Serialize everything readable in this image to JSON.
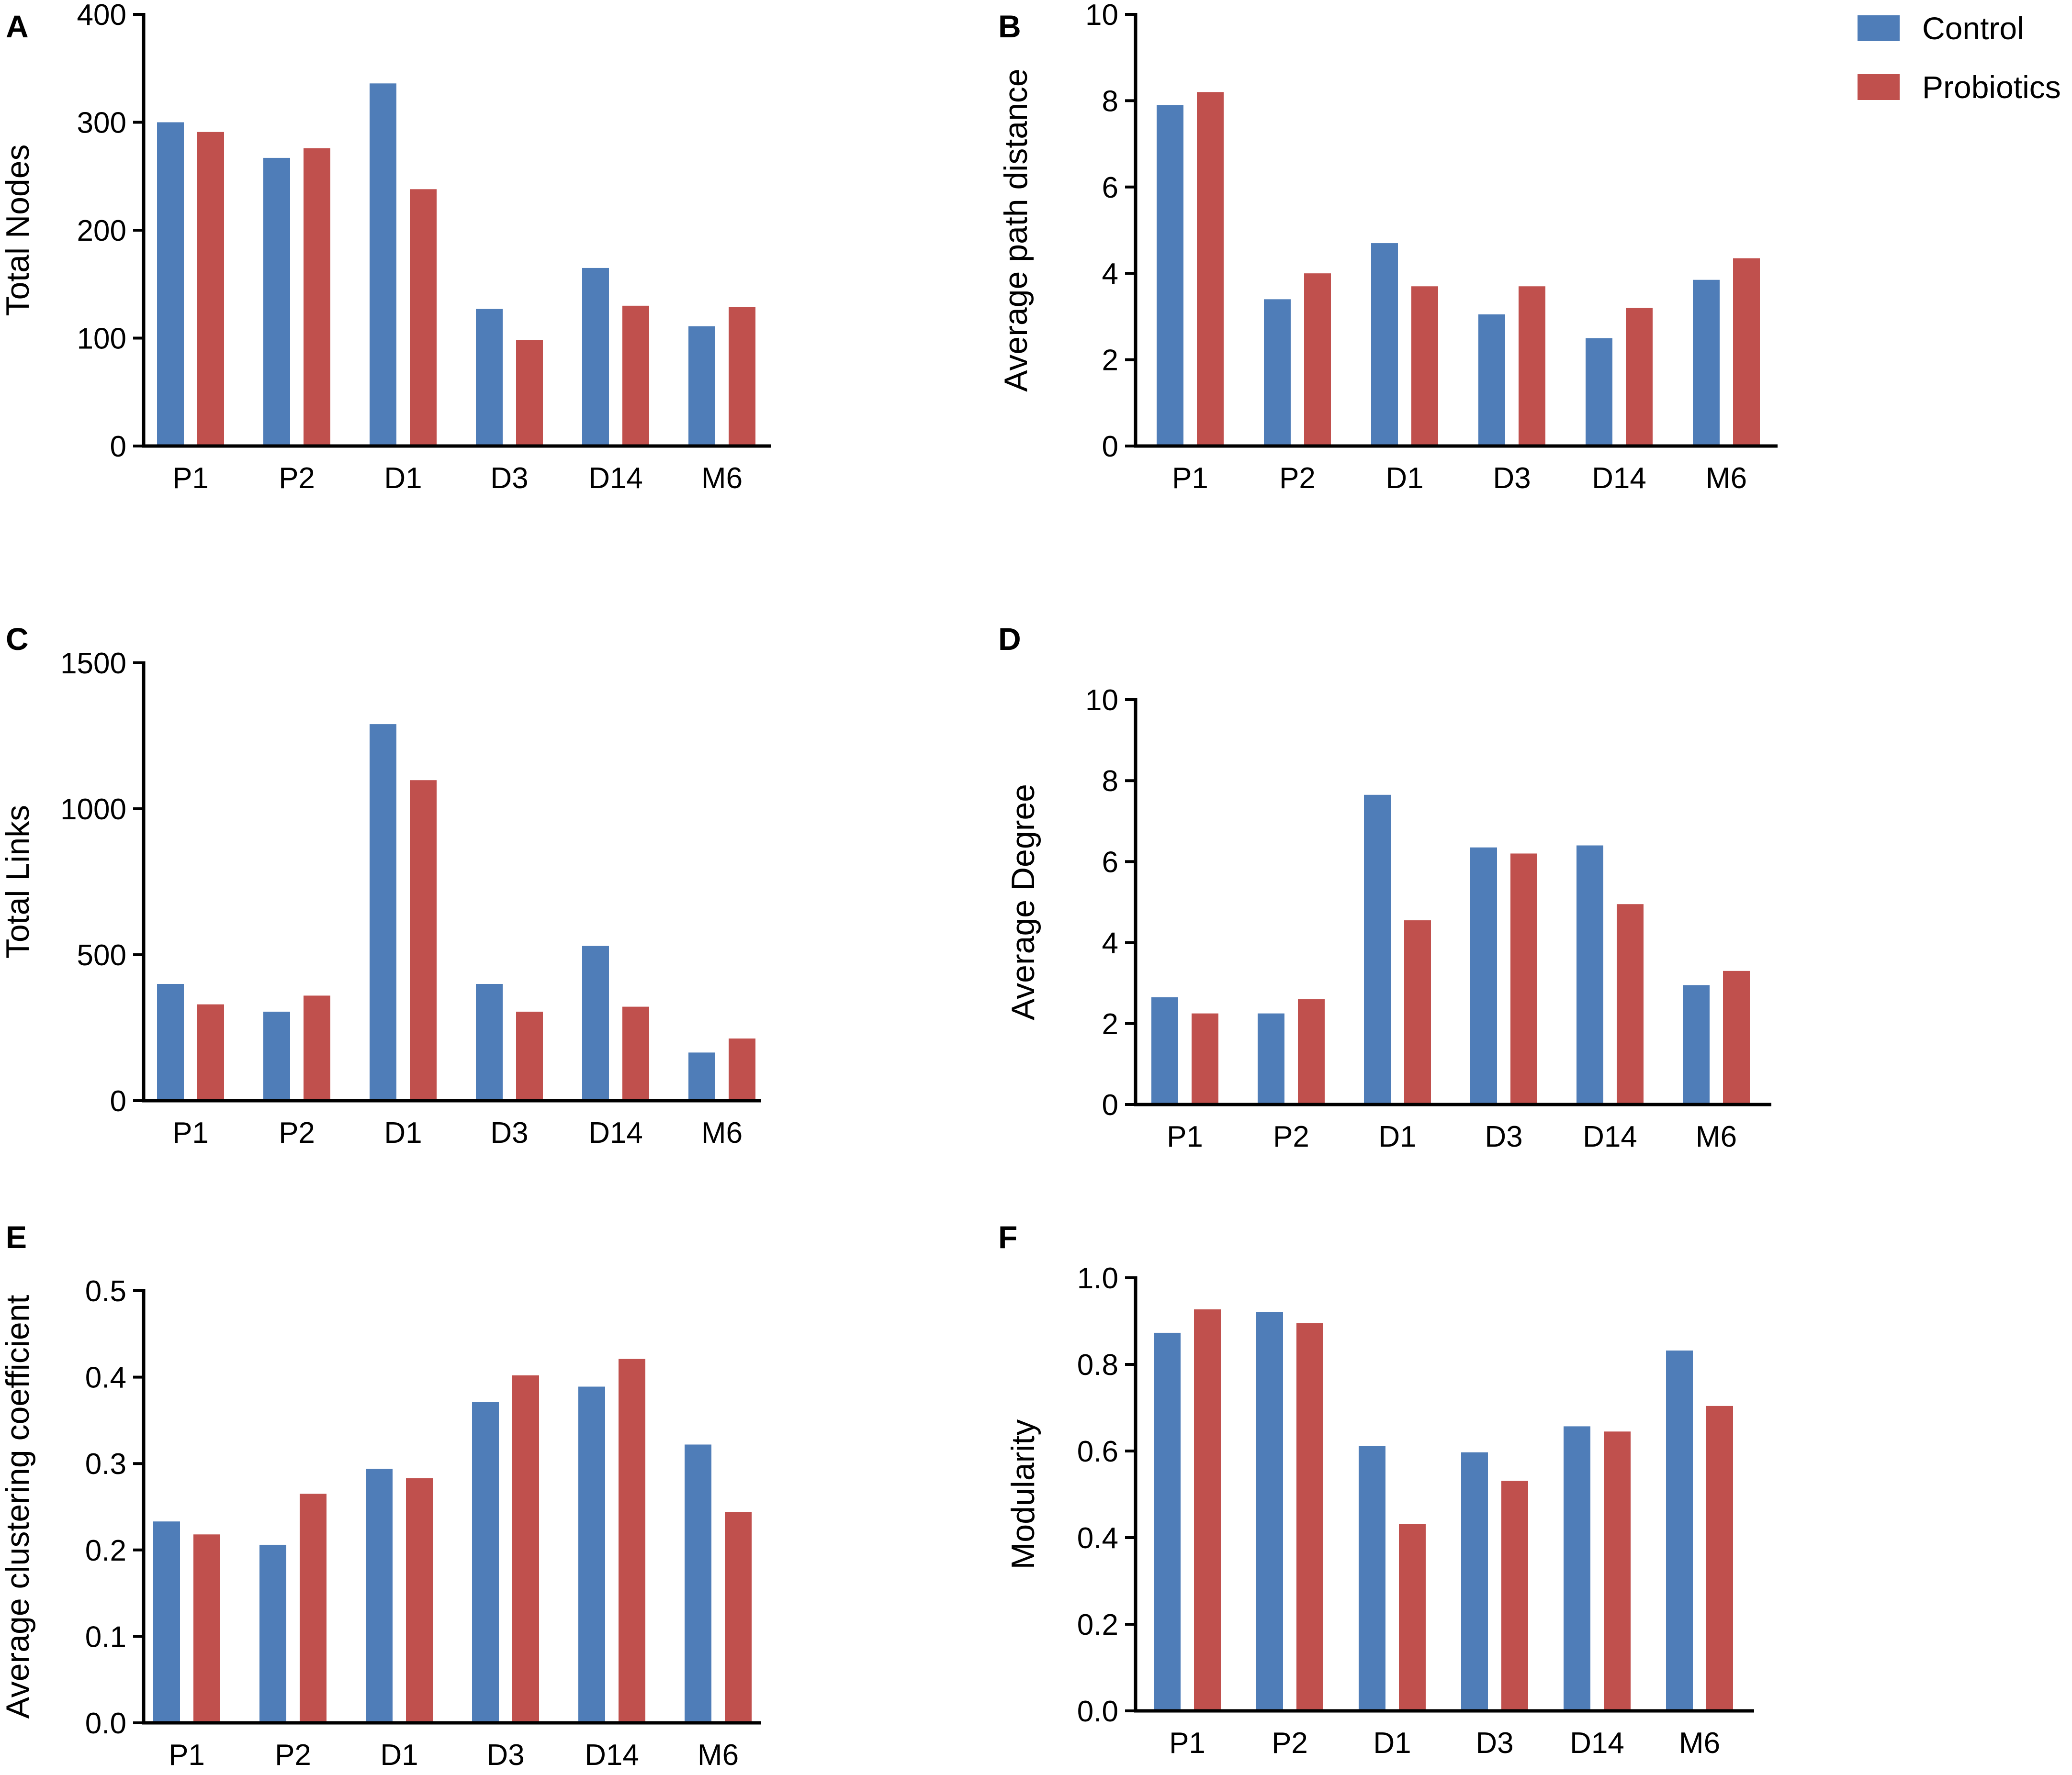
{
  "colors": {
    "control": "#4F7DB8",
    "probiotics": "#C0504D"
  },
  "legend": [
    {
      "label": "Control",
      "color_key": "control"
    },
    {
      "label": "Probiotics",
      "color_key": "probiotics"
    }
  ],
  "chart_data": [
    {
      "panel": "A",
      "type": "bar",
      "ylabel": "Total Nodes",
      "categories": [
        "P1",
        "P2",
        "D1",
        "D3",
        "D14",
        "M6"
      ],
      "ylim": [
        0,
        400
      ],
      "yticks": [
        "0",
        "100",
        "200",
        "300",
        "400"
      ],
      "series": [
        {
          "name": "Control",
          "values": [
            300,
            267,
            336,
            127,
            165,
            111
          ]
        },
        {
          "name": "Probiotics",
          "values": [
            291,
            276,
            238,
            98,
            130,
            129
          ]
        }
      ]
    },
    {
      "panel": "B",
      "type": "bar",
      "ylabel": "Average path distance",
      "categories": [
        "P1",
        "P2",
        "D1",
        "D3",
        "D14",
        "M6"
      ],
      "ylim": [
        0,
        10
      ],
      "yticks": [
        "0",
        "2",
        "4",
        "6",
        "8",
        "10"
      ],
      "series": [
        {
          "name": "Control",
          "values": [
            7.9,
            3.4,
            4.7,
            3.05,
            2.5,
            3.85
          ]
        },
        {
          "name": "Probiotics",
          "values": [
            8.2,
            4.0,
            3.7,
            3.7,
            3.2,
            4.35
          ]
        }
      ]
    },
    {
      "panel": "C",
      "type": "bar",
      "ylabel": "Total Links",
      "categories": [
        "P1",
        "P2",
        "D1",
        "D3",
        "D14",
        "M6"
      ],
      "ylim": [
        0,
        1500
      ],
      "yticks": [
        "0",
        "500",
        "1000",
        "1500"
      ],
      "series": [
        {
          "name": "Control",
          "values": [
            400,
            305,
            1290,
            400,
            530,
            165
          ]
        },
        {
          "name": "Probiotics",
          "values": [
            330,
            360,
            1098,
            305,
            322,
            213
          ]
        }
      ]
    },
    {
      "panel": "D",
      "type": "bar",
      "ylabel": "Average Degree",
      "categories": [
        "P1",
        "P2",
        "D1",
        "D3",
        "D14",
        "M6"
      ],
      "ylim": [
        0,
        10
      ],
      "yticks": [
        "0",
        "2",
        "4",
        "6",
        "8",
        "10"
      ],
      "series": [
        {
          "name": "Control",
          "values": [
            2.65,
            2.25,
            7.65,
            6.35,
            6.4,
            2.95
          ]
        },
        {
          "name": "Probiotics",
          "values": [
            2.25,
            2.6,
            4.55,
            6.2,
            4.95,
            3.3
          ]
        }
      ]
    },
    {
      "panel": "E",
      "type": "bar",
      "ylabel": "Average clustering coefficient",
      "categories": [
        "P1",
        "P2",
        "D1",
        "D3",
        "D14",
        "M6"
      ],
      "ylim": [
        0,
        0.5
      ],
      "yticks": [
        "0.0",
        "0.1",
        "0.2",
        "0.3",
        "0.4",
        "0.5"
      ],
      "series": [
        {
          "name": "Control",
          "values": [
            0.233,
            0.206,
            0.294,
            0.371,
            0.389,
            0.322
          ]
        },
        {
          "name": "Probiotics",
          "values": [
            0.218,
            0.265,
            0.283,
            0.402,
            0.421,
            0.244
          ]
        }
      ]
    },
    {
      "panel": "F",
      "type": "bar",
      "ylabel": "Modularity",
      "categories": [
        "P1",
        "P2",
        "D1",
        "D3",
        "D14",
        "M6"
      ],
      "ylim": [
        0,
        1.0
      ],
      "yticks": [
        "0.0",
        "0.2",
        "0.4",
        "0.6",
        "0.8",
        "1.0"
      ],
      "series": [
        {
          "name": "Control",
          "values": [
            0.873,
            0.921,
            0.612,
            0.597,
            0.657,
            0.832
          ]
        },
        {
          "name": "Probiotics",
          "values": [
            0.927,
            0.895,
            0.431,
            0.531,
            0.645,
            0.704
          ]
        }
      ]
    }
  ]
}
